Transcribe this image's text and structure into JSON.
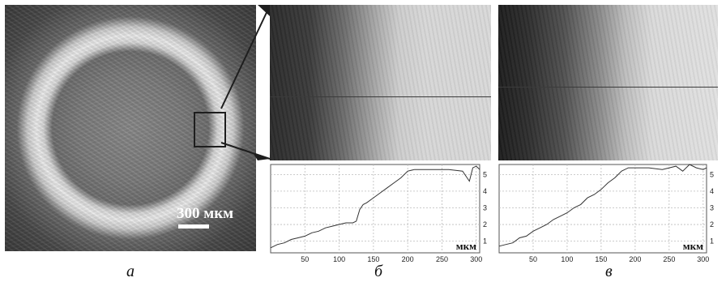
{
  "figure": {
    "panel_a": {
      "scale_label": "300 мкм",
      "caption": "а"
    },
    "panel_b": {
      "caption": "б",
      "unit": "мкм"
    },
    "panel_c": {
      "caption": "в",
      "unit": "мкм"
    }
  },
  "chart_data": [
    {
      "type": "line",
      "title": "",
      "xlabel": "",
      "ylabel": "мкм",
      "xlim": [
        0,
        305
      ],
      "ylim": [
        0.3,
        5.6
      ],
      "x_ticks": [
        50,
        100,
        150,
        200,
        250,
        300
      ],
      "y_ticks": [
        1,
        2,
        3,
        4,
        5
      ],
      "grid": true,
      "y_axis_side": "right",
      "series": [
        {
          "x": [
            0,
            10,
            20,
            30,
            40,
            50,
            60,
            70,
            80,
            90,
            100,
            110,
            120,
            125,
            130,
            135,
            140,
            150,
            160,
            170,
            180,
            190,
            200,
            210,
            220,
            240,
            260,
            280,
            290,
            295,
            300,
            305
          ],
          "y": [
            0.6,
            0.8,
            0.9,
            1.1,
            1.2,
            1.3,
            1.5,
            1.6,
            1.8,
            1.9,
            2.0,
            2.1,
            2.1,
            2.2,
            2.9,
            3.2,
            3.3,
            3.6,
            3.9,
            4.2,
            4.5,
            4.8,
            5.2,
            5.3,
            5.3,
            5.3,
            5.3,
            5.2,
            4.6,
            5.4,
            5.5,
            5.3
          ]
        }
      ]
    },
    {
      "type": "line",
      "title": "",
      "xlabel": "",
      "ylabel": "мкм",
      "xlim": [
        0,
        305
      ],
      "ylim": [
        0.3,
        5.6
      ],
      "x_ticks": [
        50,
        100,
        150,
        200,
        250,
        300
      ],
      "y_ticks": [
        1,
        2,
        3,
        4,
        5
      ],
      "grid": true,
      "y_axis_side": "right",
      "series": [
        {
          "x": [
            0,
            10,
            20,
            30,
            40,
            50,
            60,
            70,
            80,
            90,
            100,
            110,
            120,
            130,
            140,
            150,
            160,
            170,
            180,
            190,
            200,
            220,
            240,
            260,
            270,
            280,
            290,
            300,
            305
          ],
          "y": [
            0.7,
            0.8,
            0.9,
            1.2,
            1.3,
            1.6,
            1.8,
            2.0,
            2.3,
            2.5,
            2.7,
            3.0,
            3.2,
            3.6,
            3.8,
            4.1,
            4.5,
            4.8,
            5.2,
            5.4,
            5.4,
            5.4,
            5.3,
            5.5,
            5.2,
            5.6,
            5.4,
            5.3,
            5.4
          ]
        }
      ]
    }
  ]
}
